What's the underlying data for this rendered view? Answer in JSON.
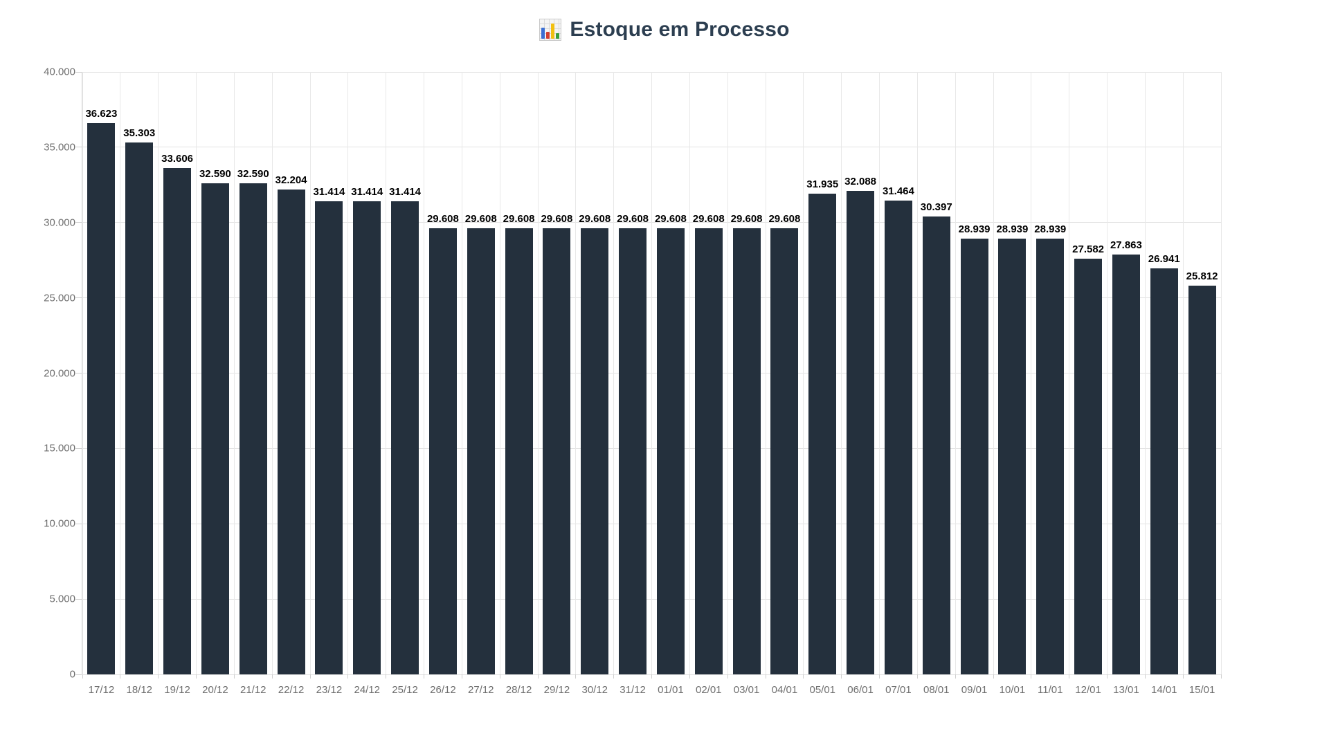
{
  "header": {
    "icon": "bar-chart-emoji",
    "title": "Estoque em Processo",
    "title_color": "#2c3e50"
  },
  "chart_data": {
    "type": "bar",
    "title": "Estoque em Processo",
    "categories": [
      "17/12",
      "18/12",
      "19/12",
      "20/12",
      "21/12",
      "22/12",
      "23/12",
      "24/12",
      "25/12",
      "26/12",
      "27/12",
      "28/12",
      "29/12",
      "30/12",
      "31/12",
      "01/01",
      "02/01",
      "03/01",
      "04/01",
      "05/01",
      "06/01",
      "07/01",
      "08/01",
      "09/01",
      "10/01",
      "11/01",
      "12/01",
      "13/01",
      "14/01",
      "15/01"
    ],
    "values": [
      36623,
      35303,
      33606,
      32590,
      32590,
      32204,
      31414,
      31414,
      31414,
      29608,
      29608,
      29608,
      29608,
      29608,
      29608,
      29608,
      29608,
      29608,
      29608,
      31935,
      32088,
      31464,
      30397,
      28939,
      28939,
      28939,
      27582,
      27863,
      26941,
      25812
    ],
    "value_labels": [
      "36.623",
      "35.303",
      "33.606",
      "32.590",
      "32.590",
      "32.204",
      "31.414",
      "31.414",
      "31.414",
      "29.608",
      "29.608",
      "29.608",
      "29.608",
      "29.608",
      "29.608",
      "29.608",
      "29.608",
      "29.608",
      "29.608",
      "31.935",
      "32.088",
      "31.464",
      "30.397",
      "28.939",
      "28.939",
      "28.939",
      "27.582",
      "27.863",
      "26.941",
      "25.812"
    ],
    "y_tick_labels": [
      "40.000",
      "35.000",
      "30.000",
      "25.000",
      "20.000",
      "15.000",
      "10.000",
      "5.000",
      "0"
    ],
    "y_tick_values": [
      40000,
      35000,
      30000,
      25000,
      20000,
      15000,
      10000,
      5000,
      0
    ],
    "ylim": [
      0,
      40000
    ],
    "xlabel": "",
    "ylabel": "",
    "grid": true,
    "legend": false,
    "bar_color": "#24303d",
    "value_label_color": "#000000",
    "axis_text_color": "#6e6e6e",
    "gridline_color": "#e2e2e2"
  }
}
